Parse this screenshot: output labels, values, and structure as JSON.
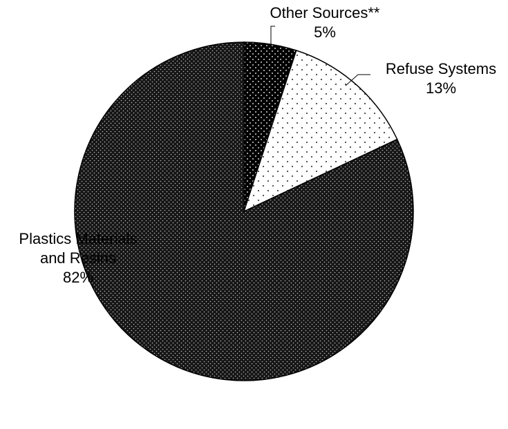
{
  "chart_data": {
    "type": "pie",
    "slices": [
      {
        "label_lines": [
          "Other Sources**"
        ],
        "value": 5,
        "value_label": "5%",
        "pattern": "dark-dots",
        "color": "#000000"
      },
      {
        "label_lines": [
          "Refuse Systems"
        ],
        "value": 13,
        "value_label": "13%",
        "pattern": "sparse-dots",
        "color": "#ffffff"
      },
      {
        "label_lines": [
          "Plastics Materials",
          "and Resins"
        ],
        "value": 82,
        "value_label": "82%",
        "pattern": "dense-dots",
        "color": "#1a1a1a"
      }
    ],
    "legend": "none",
    "start_angle": "12 o'clock",
    "direction": "clockwise"
  }
}
